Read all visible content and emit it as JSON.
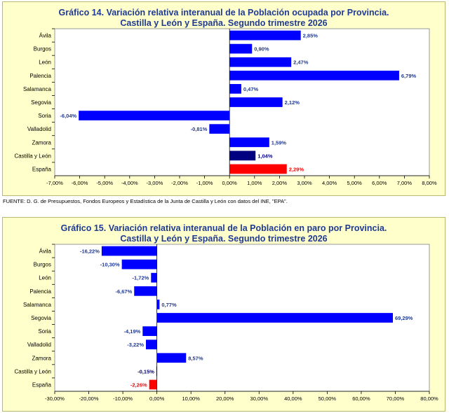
{
  "source_note": "FUENTE: D. G. de Presupuestos, Fondos Europeos y Estadística de la Junta de Castilla y León con datos del INE, \"EPA\".",
  "colors": {
    "default": "#0000ff",
    "castilla_y_leon": "#000080",
    "espana": "#ff0000",
    "label_text": "#1f3a93"
  },
  "chart_data": [
    {
      "type": "bar",
      "orientation": "horizontal",
      "title": "Gráfico 14.  Variación relativa interanual de la Población ocupada por Provincia.",
      "subtitle": "Castilla y León y España. Segundo trimestre 2026",
      "categories": [
        "Ávila",
        "Burgos",
        "León",
        "Palencia",
        "Salamanca",
        "Segovia",
        "Soria",
        "Valladolid",
        "Zamora",
        "Castilla y León",
        "España"
      ],
      "values": [
        2.85,
        0.9,
        2.47,
        6.79,
        0.47,
        2.12,
        -6.04,
        -0.81,
        1.59,
        1.04,
        2.29
      ],
      "data_labels": [
        "2,85%",
        "0,90%",
        "2,47%",
        "6,79%",
        "0,47%",
        "2,12%",
        "-6,04%",
        "-0,81%",
        "1,59%",
        "1,04%",
        "2,29%"
      ],
      "bar_colors": [
        "#0000ff",
        "#0000ff",
        "#0000ff",
        "#0000ff",
        "#0000ff",
        "#0000ff",
        "#0000ff",
        "#0000ff",
        "#0000ff",
        "#000080",
        "#ff0000"
      ],
      "label_colors": [
        "#1f3a93",
        "#1f3a93",
        "#1f3a93",
        "#1f3a93",
        "#1f3a93",
        "#1f3a93",
        "#1f3a93",
        "#1f3a93",
        "#1f3a93",
        "#000080",
        "#ff0000"
      ],
      "xlim": [
        -7,
        8
      ],
      "xticks": [
        -7,
        -6,
        -5,
        -4,
        -3,
        -2,
        -1,
        0,
        1,
        2,
        3,
        4,
        5,
        6,
        7,
        8
      ],
      "xtick_labels": [
        "-7,00%",
        "-6,00%",
        "-5,00%",
        "-4,00%",
        "-3,00%",
        "-2,00%",
        "-1,00%",
        "0,00%",
        "1,00%",
        "2,00%",
        "3,00%",
        "4,00%",
        "5,00%",
        "6,00%",
        "7,00%",
        "8,00%"
      ],
      "xlabel": "",
      "ylabel": "",
      "grid": false,
      "legend": "none"
    },
    {
      "type": "bar",
      "orientation": "horizontal",
      "title": "Gráfico 15.  Variación relativa interanual de la Población en paro por Provincia.",
      "subtitle": "Castilla y León y España. Segundo trimestre 2026",
      "categories": [
        "Ávila",
        "Burgos",
        "León",
        "Palencia",
        "Salamanca",
        "Segovia",
        "Soria",
        "Valladolid",
        "Zamora",
        "Castilla y León",
        "España"
      ],
      "values": [
        -16.22,
        -10.3,
        -1.72,
        -6.67,
        0.77,
        69.29,
        -4.19,
        -3.22,
        8.57,
        -0.15,
        -2.26
      ],
      "data_labels": [
        "-16,22%",
        "-10,30%",
        "-1,72%",
        "-6,67%",
        "0,77%",
        "69,29%",
        "-4,19%",
        "-3,22%",
        "8,57%",
        "-0,15%",
        "-2,26%"
      ],
      "bar_colors": [
        "#0000ff",
        "#0000ff",
        "#0000ff",
        "#0000ff",
        "#0000ff",
        "#0000ff",
        "#0000ff",
        "#0000ff",
        "#0000ff",
        "#000080",
        "#ff0000"
      ],
      "label_colors": [
        "#1f3a93",
        "#1f3a93",
        "#1f3a93",
        "#1f3a93",
        "#1f3a93",
        "#1f3a93",
        "#1f3a93",
        "#1f3a93",
        "#1f3a93",
        "#000080",
        "#ff0000"
      ],
      "xlim": [
        -30,
        80
      ],
      "xticks": [
        -30,
        -20,
        -10,
        0,
        10,
        20,
        30,
        40,
        50,
        60,
        70,
        80
      ],
      "xtick_labels": [
        "-30,00%",
        "-20,00%",
        "-10,00%",
        "0,00%",
        "10,00%",
        "20,00%",
        "30,00%",
        "40,00%",
        "50,00%",
        "60,00%",
        "70,00%",
        "80,00%"
      ],
      "xlabel": "",
      "ylabel": "",
      "grid": false,
      "legend": "none"
    }
  ]
}
